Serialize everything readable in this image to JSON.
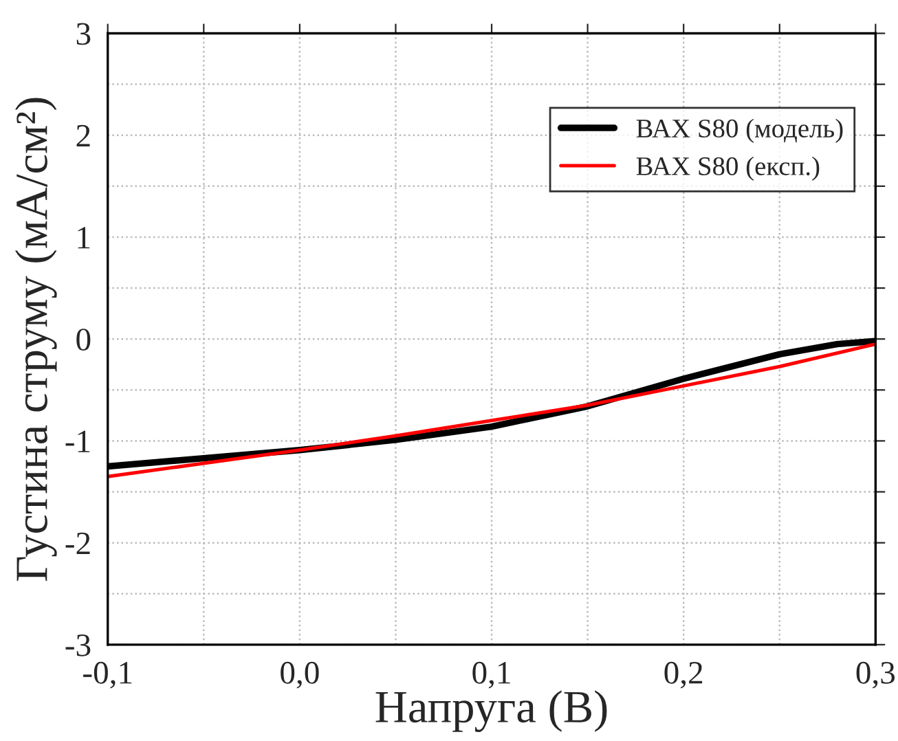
{
  "chart_data": {
    "type": "line",
    "xlabel": "Напруга (В)",
    "ylabel": "Густина струму (мА/см²)",
    "x": [
      -0.1,
      -0.05,
      0.0,
      0.05,
      0.1,
      0.15,
      0.2,
      0.25,
      0.28,
      0.3
    ],
    "series": [
      {
        "name": "ВАХ S80 (модель)",
        "color": "#000000",
        "values": [
          -1.25,
          -1.17,
          -1.09,
          -0.99,
          -0.86,
          -0.66,
          -0.39,
          -0.15,
          -0.05,
          -0.02
        ]
      },
      {
        "name": "ВАХ S80 (експ.)",
        "color": "#ff0000",
        "x": [
          -0.1,
          -0.05,
          0.0,
          0.05,
          0.1,
          0.15,
          0.2,
          0.25,
          0.3
        ],
        "values": [
          -1.35,
          -1.22,
          -1.09,
          -0.95,
          -0.8,
          -0.65,
          -0.46,
          -0.27,
          -0.05
        ]
      }
    ],
    "xlim": [
      -0.1,
      0.3
    ],
    "xticks": [
      {
        "value": -0.1,
        "label": "-0,1"
      },
      {
        "value": -0.05,
        "label": null
      },
      {
        "value": 0.0,
        "label": "0,0"
      },
      {
        "value": 0.05,
        "label": null
      },
      {
        "value": 0.1,
        "label": "0,1"
      },
      {
        "value": 0.15,
        "label": null
      },
      {
        "value": 0.2,
        "label": "0,2"
      },
      {
        "value": 0.25,
        "label": null
      },
      {
        "value": 0.3,
        "label": "0,3"
      }
    ],
    "ylim": [
      -3,
      3
    ],
    "yticks": [
      -3,
      {
        "value": -2.5,
        "label": null
      },
      -2,
      {
        "value": -1.5,
        "label": null
      },
      -1,
      {
        "value": -0.5,
        "label": null
      },
      0,
      {
        "value": 0.5,
        "label": null
      },
      1,
      {
        "value": 1.5,
        "label": null
      },
      2,
      {
        "value": 2.5,
        "label": null
      },
      3
    ],
    "grid": true,
    "legend": "top right",
    "marker": "none",
    "line_style": "solid"
  }
}
